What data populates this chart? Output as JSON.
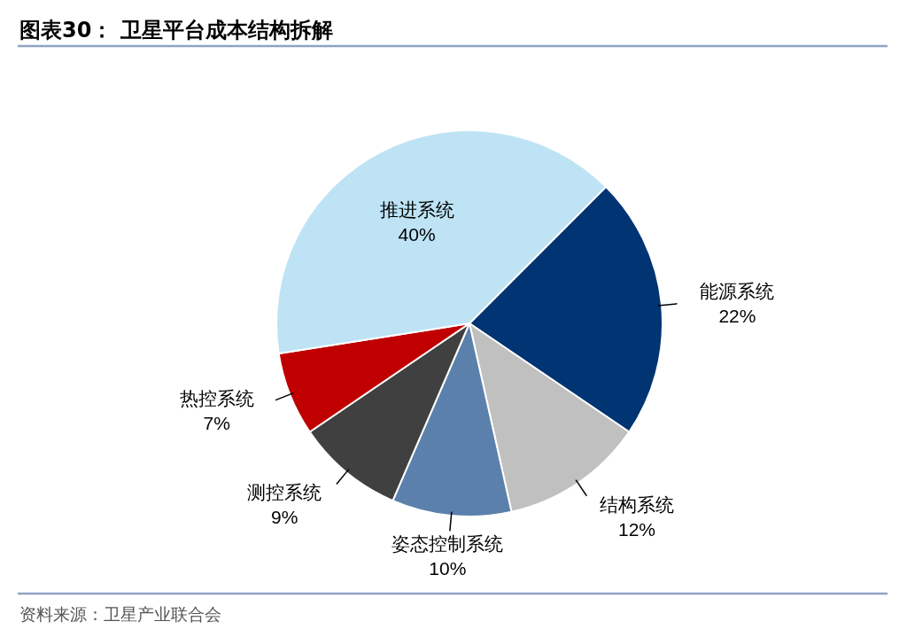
{
  "chart_data": {
    "type": "pie",
    "title": "图表30：  卫星平台成本结构拆解",
    "categories": [
      "能源系统",
      "结构系统",
      "姿态控制系统",
      "测控系统",
      "热控系统",
      "推进系统"
    ],
    "values": [
      22,
      12,
      10,
      9,
      7,
      40
    ],
    "colors": [
      "#003473",
      "#c0c0c0",
      "#5b80ab",
      "#404040",
      "#c00000",
      "#bde3f5"
    ],
    "value_labels": [
      "22%",
      "12%",
      "10%",
      "9%",
      "7%",
      "40%"
    ],
    "annotations": [
      "资料来源：卫星产业联合会"
    ]
  }
}
